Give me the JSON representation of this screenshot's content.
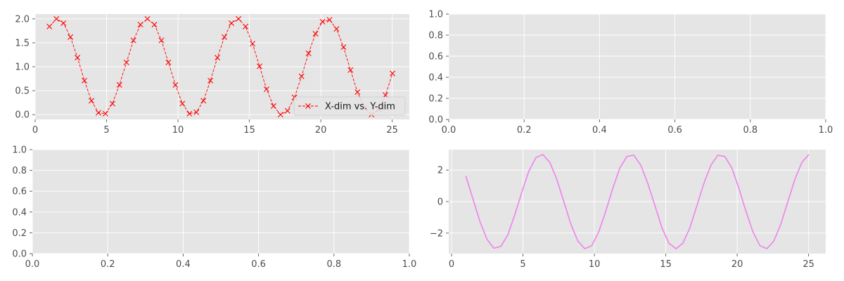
{
  "style": {
    "axes_bg": "#e5e5e5",
    "grid": "#ffffff",
    "tick_text": "#4d4d4d",
    "figure_bg": "#ffffff"
  },
  "chart_data": [
    {
      "id": "top-left",
      "type": "line",
      "grid": true,
      "xlim": [
        0,
        26.2
      ],
      "ylim": [
        -0.1,
        2.1
      ],
      "xticks": [
        0,
        5,
        10,
        15,
        20,
        25
      ],
      "yticks": [
        0.0,
        0.5,
        1.0,
        1.5,
        2.0
      ],
      "ytick_format": 1,
      "legend": {
        "position": "lower-right"
      },
      "series": [
        {
          "name": "X-dim vs. Y-dim",
          "color": "#ff0000",
          "linestyle": "dashed",
          "marker": "x",
          "x": [
            1.0,
            1.49,
            1.98,
            2.47,
            2.96,
            3.45,
            3.94,
            4.43,
            4.92,
            5.41,
            5.9,
            6.39,
            6.88,
            7.37,
            7.86,
            8.35,
            8.84,
            9.33,
            9.82,
            10.31,
            10.8,
            11.29,
            11.78,
            12.27,
            12.76,
            13.25,
            13.74,
            14.24,
            14.73,
            15.22,
            15.71,
            16.2,
            16.69,
            17.18,
            17.67,
            18.16,
            18.65,
            19.14,
            19.63,
            20.12,
            20.61,
            21.1,
            21.59,
            22.08,
            22.57,
            23.06,
            23.55,
            24.04,
            24.53,
            25.02
          ],
          "y": [
            1.84,
            2.0,
            1.91,
            1.62,
            1.19,
            0.71,
            0.29,
            0.04,
            0.02,
            0.23,
            0.62,
            1.09,
            1.55,
            1.88,
            2.0,
            1.88,
            1.55,
            1.09,
            0.62,
            0.23,
            0.02,
            0.05,
            0.29,
            0.71,
            1.19,
            1.62,
            1.91,
            2.0,
            1.84,
            1.48,
            1.01,
            0.53,
            0.18,
            0.0,
            0.08,
            0.36,
            0.8,
            1.28,
            1.69,
            1.94,
            1.98,
            1.79,
            1.41,
            0.93,
            0.47,
            0.14,
            0.0,
            0.11,
            0.41,
            0.86
          ]
        }
      ]
    },
    {
      "id": "top-right",
      "type": "line",
      "grid": true,
      "xlim": [
        0,
        1
      ],
      "ylim": [
        0,
        1
      ],
      "xticks": [
        0.0,
        0.2,
        0.4,
        0.6,
        0.8,
        1.0
      ],
      "yticks": [
        0.0,
        0.2,
        0.4,
        0.6,
        0.8,
        1.0
      ],
      "xtick_format": 1,
      "ytick_format": 1,
      "series": []
    },
    {
      "id": "bottom-left",
      "type": "line",
      "grid": true,
      "xlim": [
        0,
        1
      ],
      "ylim": [
        0,
        1
      ],
      "xticks": [
        0.0,
        0.2,
        0.4,
        0.6,
        0.8,
        1.0
      ],
      "yticks": [
        0.0,
        0.2,
        0.4,
        0.6,
        0.8,
        1.0
      ],
      "xtick_format": 1,
      "ytick_format": 1,
      "series": []
    },
    {
      "id": "bottom-right",
      "type": "line",
      "grid": true,
      "xlim": [
        -0.2,
        26.2
      ],
      "ylim": [
        -3.3,
        3.3
      ],
      "xticks": [
        0,
        5,
        10,
        15,
        20,
        25
      ],
      "yticks": [
        -2,
        0,
        2
      ],
      "series": [
        {
          "color": "#ee82ee",
          "linestyle": "solid",
          "marker": "none",
          "x": [
            1.0,
            1.49,
            1.98,
            2.47,
            2.96,
            3.45,
            3.94,
            4.43,
            4.92,
            5.41,
            5.9,
            6.39,
            6.88,
            7.37,
            7.86,
            8.35,
            8.84,
            9.33,
            9.82,
            10.31,
            10.8,
            11.29,
            11.78,
            12.27,
            12.76,
            13.25,
            13.74,
            14.24,
            14.73,
            15.22,
            15.71,
            16.2,
            16.69,
            17.18,
            17.67,
            18.16,
            18.65,
            19.14,
            19.63,
            20.12,
            20.61,
            21.1,
            21.59,
            22.08,
            22.57,
            23.06,
            23.55,
            24.04,
            24.53,
            25.02
          ],
          "y": [
            1.62,
            0.19,
            -1.25,
            -2.38,
            -2.96,
            -2.84,
            -2.11,
            -0.83,
            0.61,
            1.93,
            2.79,
            2.99,
            2.49,
            1.41,
            0.0,
            -1.42,
            -2.5,
            -2.99,
            -2.79,
            -1.91,
            -0.6,
            0.85,
            2.13,
            2.86,
            2.95,
            2.31,
            1.16,
            -0.25,
            -1.66,
            -2.64,
            -2.99,
            -2.64,
            -1.66,
            -0.25,
            1.16,
            2.31,
            2.95,
            2.86,
            2.13,
            0.85,
            -0.6,
            -1.91,
            -2.79,
            -2.99,
            -2.5,
            -1.42,
            0.0,
            1.41,
            2.49,
            2.99
          ]
        }
      ]
    }
  ]
}
